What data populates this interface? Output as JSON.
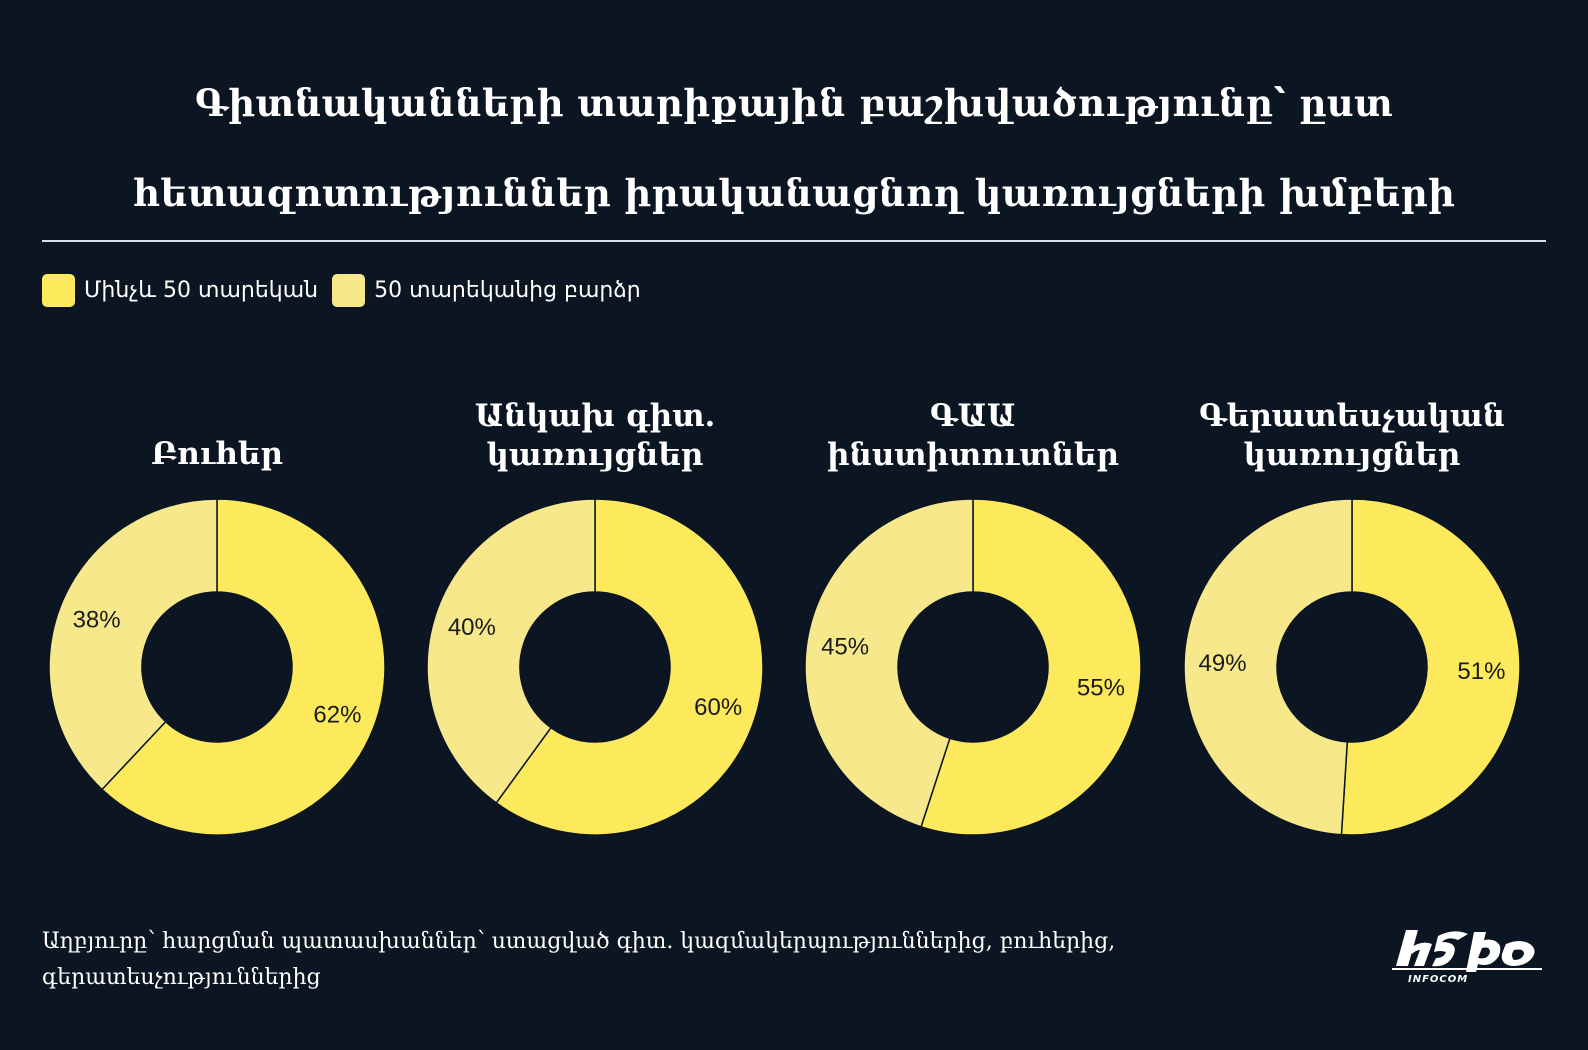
{
  "title": {
    "line1": "Գիտնականների տարիքային բաշխվածությունը՝ ըստ",
    "line2": "հետազոտություններ իրականացնող կառույցների խմբերի"
  },
  "legend": [
    {
      "label": "Մինչև 50 տարեկան",
      "color": "#fde95c"
    },
    {
      "label": "50 տարեկանից բարձր",
      "color": "#f7e98b"
    }
  ],
  "chart_data": [
    {
      "type": "pie",
      "title_line1": "Բուհեր",
      "title_line2": "",
      "categories": [
        "Մինչև 50 տարեկան",
        "50 տարեկանից բարձր"
      ],
      "values": [
        62,
        38
      ],
      "labels": [
        "62%",
        "38%"
      ]
    },
    {
      "type": "pie",
      "title_line1": "Անկախ գիտ.",
      "title_line2": "կառույցներ",
      "categories": [
        "Մինչև 50 տարեկան",
        "50 տարեկանից բարձր"
      ],
      "values": [
        60,
        40
      ],
      "labels": [
        "60%",
        "40%"
      ]
    },
    {
      "type": "pie",
      "title_line1": "ԳԱԱ",
      "title_line2": "ինստիտուտներ",
      "categories": [
        "Մինչև 50 տարեկան",
        "50 տարեկանից բարձր"
      ],
      "values": [
        55,
        45
      ],
      "labels": [
        "55%",
        "45%"
      ]
    },
    {
      "type": "pie",
      "title_line1": "Գերատեսչական",
      "title_line2": "կառույցներ",
      "categories": [
        "Մինչև 50 տարեկան",
        "50 տարեկանից բարձր"
      ],
      "values": [
        51,
        49
      ],
      "labels": [
        "51%",
        "49%"
      ]
    }
  ],
  "footer": {
    "line1": "Աղբյուրը՝ հարցման պատասխաններ՝ ստացված գիտ. կազմակերպություններից, բուհերից,",
    "line2": "գերատեսչություններից"
  },
  "logo": {
    "text": "INFOCOM"
  },
  "colors": {
    "background": "#0c1522",
    "under50": "#fde95c",
    "over50": "#f7e98b",
    "label": "#1b1b1b"
  }
}
